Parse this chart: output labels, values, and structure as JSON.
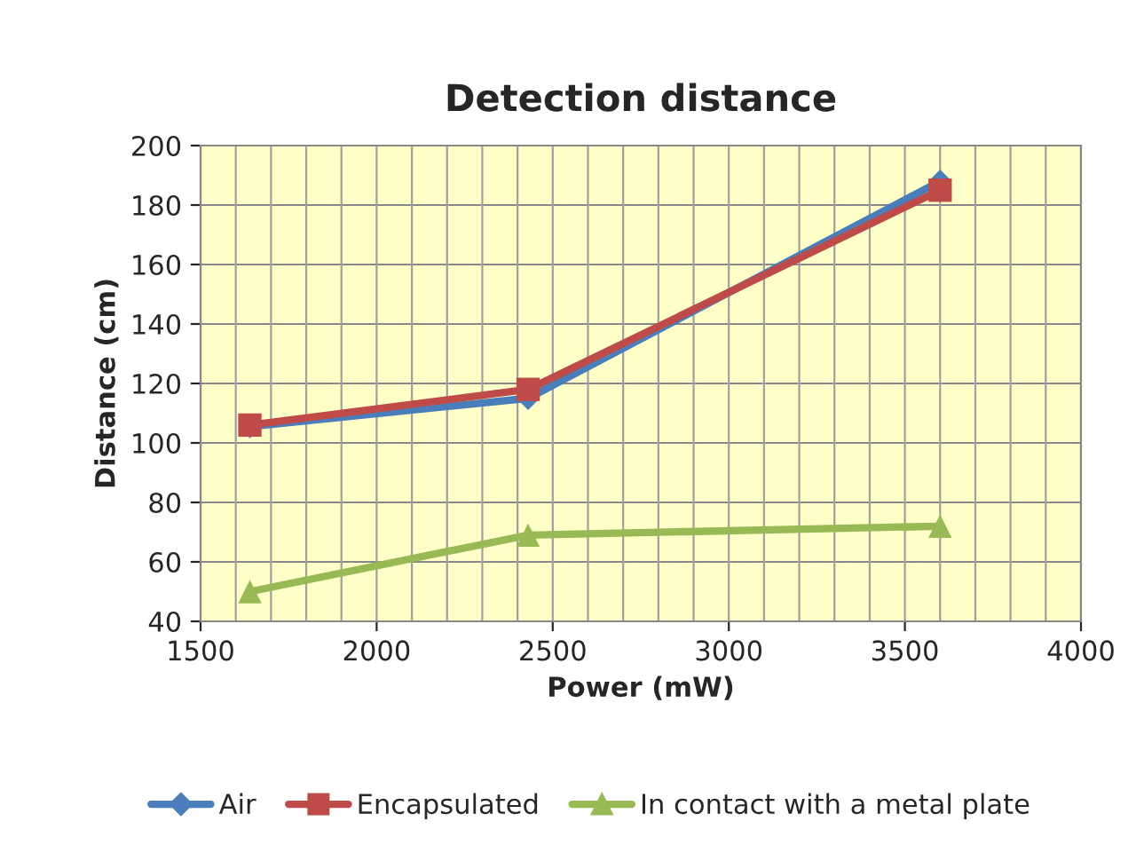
{
  "chart_data": {
    "type": "line",
    "title": "Detection distance",
    "xlabel": "Power (mW)",
    "ylabel": "Distance (cm)",
    "x": [
      1640,
      2430,
      3600
    ],
    "series": [
      {
        "name": "Air",
        "color": "#4a7ebb",
        "marker": "diamond",
        "values": [
          105.5,
          115,
          188
        ]
      },
      {
        "name": "Encapsulated",
        "color": "#be4b48",
        "marker": "square",
        "values": [
          106,
          118,
          185
        ]
      },
      {
        "name": "In contact with a metal plate",
        "color": "#98b954",
        "marker": "triangle",
        "values": [
          50,
          69,
          72
        ]
      }
    ],
    "xlim": [
      1500,
      4000
    ],
    "xticks": [
      1500,
      2000,
      2500,
      3000,
      3500,
      4000
    ],
    "ylim": [
      40,
      200
    ],
    "yticks": [
      40,
      60,
      80,
      100,
      120,
      140,
      160,
      180,
      200
    ],
    "grid": true,
    "legend": "bottom",
    "line_style": "solid"
  }
}
